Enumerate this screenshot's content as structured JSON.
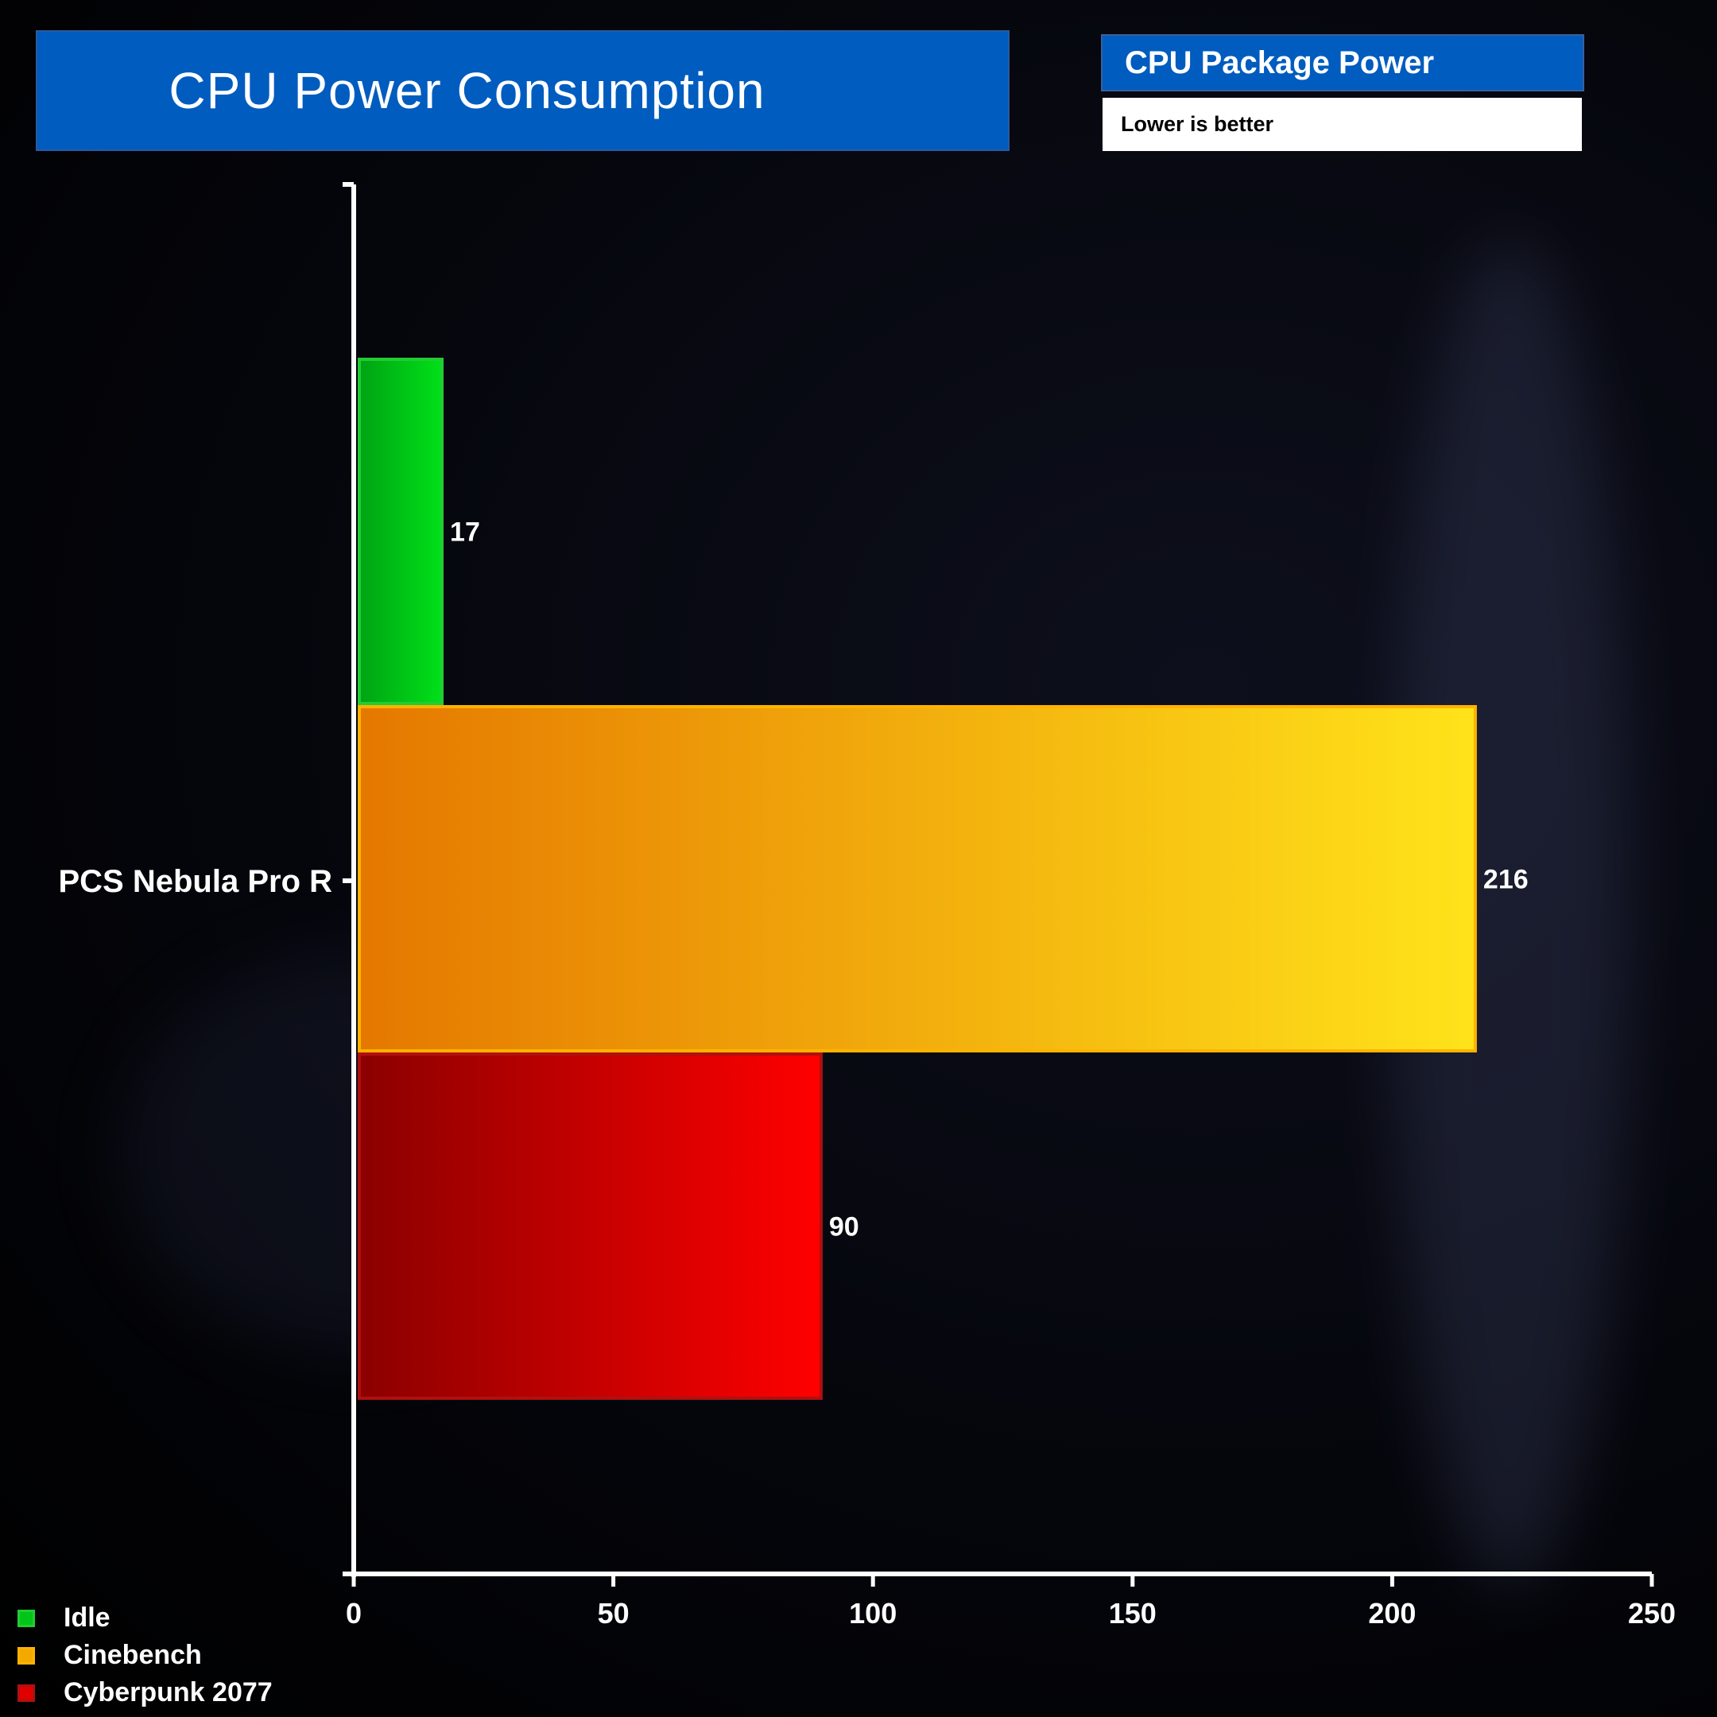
{
  "header": {
    "title": "CPU Power Consumption",
    "subtitle": "CPU Package Power",
    "note": "Lower is better"
  },
  "colors": {
    "idle": [
      "#00a313",
      "#00e019"
    ],
    "cinebench": [
      "#e57800",
      "#ffe31a"
    ],
    "cyberpunk": [
      "#8b0000",
      "#ff0000"
    ]
  },
  "chart_data": {
    "type": "bar",
    "orientation": "horizontal",
    "categories": [
      "PCS Nebula Pro R"
    ],
    "series": [
      {
        "name": "Idle",
        "values": [
          17
        ],
        "color": "#00c417"
      },
      {
        "name": "Cinebench",
        "values": [
          216
        ],
        "color": "#f5a800"
      },
      {
        "name": "Cyberpunk 2077",
        "values": [
          90
        ],
        "color": "#e00000"
      }
    ],
    "xlim": [
      0,
      250
    ],
    "xticks": [
      0,
      50,
      100,
      150,
      200,
      250
    ],
    "legend_position": "bottom-left",
    "grid": false
  }
}
